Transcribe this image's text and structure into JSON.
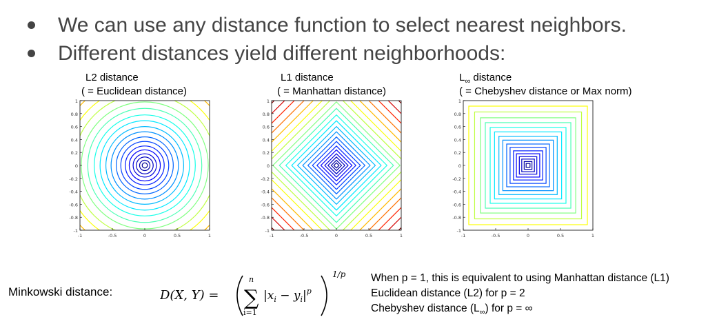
{
  "bullets": [
    "We can use any distance function to select nearest neighbors.",
    "Different distances yield different neighborhoods:"
  ],
  "panels": [
    {
      "title": "L2 distance",
      "subtitle": "( = Euclidean distance)",
      "norm": "l2"
    },
    {
      "title": "L1 distance",
      "subtitle": "( = Manhattan distance)",
      "norm": "l1"
    },
    {
      "title_prefix": "L",
      "title_sub": "∞",
      "title_suffix": " distance",
      "subtitle": "( = Chebyshev distance or Max norm)",
      "norm": "linf"
    }
  ],
  "axes": {
    "yticks": [
      "1",
      "0.8",
      "0.6",
      "0.4",
      "0.2",
      "0",
      "-0.2",
      "-0.4",
      "-0.6",
      "-0.8",
      "-1"
    ],
    "xticks": [
      "-1",
      "-0.5",
      "0",
      "0.5",
      "1"
    ],
    "range": [
      -1,
      1
    ]
  },
  "contour_levels": [
    0.04,
    0.08,
    0.13,
    0.18,
    0.24,
    0.3,
    0.37,
    0.44,
    0.52,
    0.6,
    0.69,
    0.78,
    0.88,
    0.98,
    1.1,
    1.22,
    1.36,
    1.5,
    1.65,
    1.8,
    1.96
  ],
  "minkowski": {
    "label": "Minkowski distance:",
    "lhs": "D(X, Y) = ",
    "sum_top": "n",
    "sum_bottom": "i=1",
    "term": "|x",
    "exponent": "1/p"
  },
  "notes": {
    "line1": "When p = 1, this is equivalent to using Manhattan distance (L1)",
    "line2": "Euclidean distance (L2) for p = 2",
    "line3_prefix": "Chebyshev distance (L",
    "line3_sub": "∞",
    "line3_suffix": ") for p = ∞"
  }
}
